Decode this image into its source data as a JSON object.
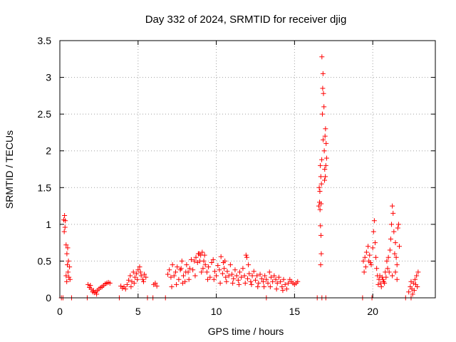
{
  "chart_data": {
    "type": "scatter",
    "title": "Day 332 of 2024, SRMTID for receiver djig",
    "xlabel": "GPS time / hours",
    "ylabel": "SRMTID / TECUs",
    "xlim": [
      0,
      24
    ],
    "ylim": [
      0,
      3.5
    ],
    "xticks": [
      0,
      5,
      10,
      15,
      20
    ],
    "xtick_labels": [
      "0",
      "5",
      "10",
      "15",
      "20"
    ],
    "yticks": [
      0,
      0.5,
      1,
      1.5,
      2,
      2.5,
      3,
      3.5
    ],
    "ytick_labels": [
      "0",
      "0.5",
      "1",
      "1.5",
      "2",
      "2.5",
      "3",
      "3.5"
    ],
    "grid": true,
    "marker": "+",
    "series": [
      {
        "name": "SRMTID",
        "color": "#ff0000",
        "points": [
          [
            0.1,
            0.0
          ],
          [
            0.2,
            0.0
          ],
          [
            0.75,
            0.0
          ],
          [
            1.75,
            0.0
          ],
          [
            3.8,
            0.0
          ],
          [
            5.6,
            0.0
          ],
          [
            5.95,
            0.0
          ],
          [
            6.75,
            0.0
          ],
          [
            13.2,
            0.0
          ],
          [
            16.45,
            0.0
          ],
          [
            16.75,
            0.0
          ],
          [
            17.0,
            0.0
          ],
          [
            19.35,
            0.0
          ],
          [
            19.95,
            0.0
          ],
          [
            22.1,
            0.0
          ],
          [
            22.45,
            0.0
          ],
          [
            0.25,
            1.06
          ],
          [
            0.3,
            1.12
          ],
          [
            0.33,
            0.96
          ],
          [
            0.28,
            0.9
          ],
          [
            0.35,
            1.05
          ],
          [
            0.4,
            0.72
          ],
          [
            0.45,
            0.6
          ],
          [
            0.48,
            0.45
          ],
          [
            0.52,
            0.35
          ],
          [
            0.55,
            0.5
          ],
          [
            0.58,
            0.28
          ],
          [
            0.62,
            0.42
          ],
          [
            0.65,
            0.25
          ],
          [
            0.4,
            0.3
          ],
          [
            0.5,
            0.68
          ],
          [
            0.44,
            0.22
          ],
          [
            1.8,
            0.18
          ],
          [
            1.9,
            0.14
          ],
          [
            2.0,
            0.12
          ],
          [
            2.1,
            0.08
          ],
          [
            2.2,
            0.07
          ],
          [
            2.3,
            0.08
          ],
          [
            2.4,
            0.1
          ],
          [
            2.5,
            0.12
          ],
          [
            2.6,
            0.14
          ],
          [
            2.7,
            0.15
          ],
          [
            2.8,
            0.17
          ],
          [
            2.9,
            0.19
          ],
          [
            3.0,
            0.2
          ],
          [
            3.1,
            0.21
          ],
          [
            3.2,
            0.2
          ],
          [
            1.95,
            0.17
          ],
          [
            2.15,
            0.1
          ],
          [
            2.35,
            0.05
          ],
          [
            3.9,
            0.16
          ],
          [
            4.0,
            0.13
          ],
          [
            4.1,
            0.15
          ],
          [
            4.2,
            0.12
          ],
          [
            4.3,
            0.18
          ],
          [
            4.4,
            0.24
          ],
          [
            4.5,
            0.3
          ],
          [
            4.6,
            0.22
          ],
          [
            4.7,
            0.35
          ],
          [
            4.8,
            0.28
          ],
          [
            4.9,
            0.33
          ],
          [
            5.0,
            0.38
          ],
          [
            5.1,
            0.42
          ],
          [
            5.2,
            0.3
          ],
          [
            5.3,
            0.25
          ],
          [
            5.4,
            0.32
          ],
          [
            5.5,
            0.28
          ],
          [
            4.55,
            0.15
          ],
          [
            4.75,
            0.2
          ],
          [
            4.95,
            0.25
          ],
          [
            5.15,
            0.35
          ],
          [
            5.35,
            0.22
          ],
          [
            6.0,
            0.18
          ],
          [
            6.1,
            0.2
          ],
          [
            6.2,
            0.16
          ],
          [
            6.9,
            0.32
          ],
          [
            7.0,
            0.38
          ],
          [
            7.1,
            0.28
          ],
          [
            7.2,
            0.45
          ],
          [
            7.3,
            0.3
          ],
          [
            7.4,
            0.35
          ],
          [
            7.5,
            0.42
          ],
          [
            7.6,
            0.25
          ],
          [
            7.7,
            0.38
          ],
          [
            7.8,
            0.5
          ],
          [
            7.9,
            0.3
          ],
          [
            8.0,
            0.22
          ],
          [
            8.1,
            0.45
          ],
          [
            8.2,
            0.35
          ],
          [
            8.3,
            0.4
          ],
          [
            8.4,
            0.52
          ],
          [
            8.5,
            0.38
          ],
          [
            8.6,
            0.5
          ],
          [
            8.7,
            0.55
          ],
          [
            8.8,
            0.48
          ],
          [
            8.9,
            0.6
          ],
          [
            9.0,
            0.58
          ],
          [
            9.1,
            0.62
          ],
          [
            9.2,
            0.5
          ],
          [
            9.3,
            0.45
          ],
          [
            9.4,
            0.35
          ],
          [
            9.5,
            0.42
          ],
          [
            9.6,
            0.28
          ],
          [
            9.7,
            0.48
          ],
          [
            9.8,
            0.52
          ],
          [
            9.9,
            0.36
          ],
          [
            10.0,
            0.3
          ],
          [
            10.1,
            0.44
          ],
          [
            10.2,
            0.38
          ],
          [
            10.3,
            0.56
          ],
          [
            10.4,
            0.33
          ],
          [
            10.5,
            0.4
          ],
          [
            10.6,
            0.28
          ],
          [
            10.7,
            0.36
          ],
          [
            10.8,
            0.3
          ],
          [
            10.9,
            0.45
          ],
          [
            11.0,
            0.32
          ],
          [
            11.1,
            0.26
          ],
          [
            11.2,
            0.38
          ],
          [
            11.3,
            0.3
          ],
          [
            11.4,
            0.24
          ],
          [
            11.5,
            0.35
          ],
          [
            11.6,
            0.28
          ],
          [
            11.7,
            0.4
          ],
          [
            11.8,
            0.3
          ],
          [
            11.9,
            0.58
          ],
          [
            12.0,
            0.26
          ],
          [
            12.1,
            0.33
          ],
          [
            12.2,
            0.22
          ],
          [
            12.3,
            0.3
          ],
          [
            12.4,
            0.36
          ],
          [
            12.5,
            0.24
          ],
          [
            12.6,
            0.3
          ],
          [
            12.7,
            0.2
          ],
          [
            12.8,
            0.32
          ],
          [
            12.9,
            0.26
          ],
          [
            13.0,
            0.22
          ],
          [
            13.1,
            0.3
          ],
          [
            13.2,
            0.25
          ],
          [
            13.3,
            0.2
          ],
          [
            13.4,
            0.35
          ],
          [
            13.5,
            0.28
          ],
          [
            13.6,
            0.22
          ],
          [
            13.7,
            0.3
          ],
          [
            13.8,
            0.25
          ],
          [
            13.9,
            0.2
          ],
          [
            14.0,
            0.28
          ],
          [
            14.1,
            0.22
          ],
          [
            14.2,
            0.15
          ],
          [
            14.3,
            0.25
          ],
          [
            14.4,
            0.18
          ],
          [
            14.5,
            0.12
          ],
          [
            14.6,
            0.2
          ],
          [
            14.7,
            0.25
          ],
          [
            14.8,
            0.22
          ],
          [
            14.9,
            0.2
          ],
          [
            15.0,
            0.18
          ],
          [
            15.1,
            0.2
          ],
          [
            15.2,
            0.22
          ],
          [
            7.15,
            0.15
          ],
          [
            7.45,
            0.18
          ],
          [
            7.85,
            0.2
          ],
          [
            8.25,
            0.25
          ],
          [
            8.65,
            0.3
          ],
          [
            9.05,
            0.35
          ],
          [
            9.45,
            0.25
          ],
          [
            9.85,
            0.25
          ],
          [
            10.25,
            0.2
          ],
          [
            10.65,
            0.22
          ],
          [
            11.05,
            0.2
          ],
          [
            11.45,
            0.18
          ],
          [
            11.85,
            0.2
          ],
          [
            12.25,
            0.18
          ],
          [
            12.65,
            0.15
          ],
          [
            13.05,
            0.15
          ],
          [
            13.45,
            0.15
          ],
          [
            13.85,
            0.12
          ],
          [
            14.25,
            0.1
          ],
          [
            8.95,
            0.5
          ],
          [
            9.25,
            0.58
          ],
          [
            9.15,
            0.4
          ],
          [
            8.85,
            0.6
          ],
          [
            10.45,
            0.48
          ],
          [
            10.55,
            0.5
          ],
          [
            12.05,
            0.45
          ],
          [
            11.95,
            0.55
          ],
          [
            7.75,
            0.4
          ],
          [
            8.05,
            0.35
          ],
          [
            16.55,
            1.25
          ],
          [
            16.58,
            1.5
          ],
          [
            16.6,
            1.3
          ],
          [
            16.62,
            1.45
          ],
          [
            16.65,
            1.8
          ],
          [
            16.68,
            1.65
          ],
          [
            16.7,
            1.28
          ],
          [
            16.72,
            1.55
          ],
          [
            16.75,
            3.28
          ],
          [
            16.78,
            2.5
          ],
          [
            16.8,
            2.85
          ],
          [
            16.82,
            3.05
          ],
          [
            16.85,
            2.78
          ],
          [
            16.88,
            2.6
          ],
          [
            16.9,
            2.0
          ],
          [
            16.92,
            1.6
          ],
          [
            16.95,
            2.2
          ],
          [
            16.98,
            2.3
          ],
          [
            17.0,
            1.8
          ],
          [
            17.02,
            2.1
          ],
          [
            17.05,
            1.9
          ],
          [
            16.63,
            1.2
          ],
          [
            16.66,
            0.98
          ],
          [
            16.69,
            0.85
          ],
          [
            16.71,
            0.6
          ],
          [
            16.67,
            0.45
          ],
          [
            16.74,
            1.88
          ],
          [
            16.83,
            2.15
          ],
          [
            16.93,
            1.75
          ],
          [
            16.97,
            1.65
          ],
          [
            19.4,
            0.5
          ],
          [
            19.5,
            0.55
          ],
          [
            19.6,
            0.62
          ],
          [
            19.7,
            0.7
          ],
          [
            19.8,
            0.58
          ],
          [
            19.9,
            0.45
          ],
          [
            20.0,
            0.68
          ],
          [
            20.05,
            0.9
          ],
          [
            20.1,
            1.05
          ],
          [
            20.15,
            0.75
          ],
          [
            20.2,
            0.55
          ],
          [
            20.25,
            0.4
          ],
          [
            20.3,
            0.3
          ],
          [
            20.4,
            0.25
          ],
          [
            20.5,
            0.2
          ],
          [
            20.6,
            0.28
          ],
          [
            20.7,
            0.22
          ],
          [
            20.8,
            0.35
          ],
          [
            20.9,
            0.5
          ],
          [
            21.0,
            0.55
          ],
          [
            21.1,
            0.65
          ],
          [
            21.15,
            0.8
          ],
          [
            21.2,
            1.0
          ],
          [
            21.25,
            1.25
          ],
          [
            21.3,
            1.15
          ],
          [
            21.35,
            0.9
          ],
          [
            21.4,
            0.6
          ],
          [
            21.45,
            0.75
          ],
          [
            21.5,
            0.55
          ],
          [
            21.55,
            0.45
          ],
          [
            21.6,
            0.95
          ],
          [
            21.65,
            1.0
          ],
          [
            21.7,
            0.7
          ],
          [
            19.45,
            0.35
          ],
          [
            19.55,
            0.42
          ],
          [
            19.75,
            0.5
          ],
          [
            19.85,
            0.48
          ],
          [
            20.35,
            0.18
          ],
          [
            20.45,
            0.3
          ],
          [
            20.55,
            0.15
          ],
          [
            20.65,
            0.25
          ],
          [
            20.75,
            0.2
          ],
          [
            20.85,
            0.28
          ],
          [
            20.95,
            0.4
          ],
          [
            21.05,
            0.35
          ],
          [
            21.25,
            0.3
          ],
          [
            21.45,
            0.35
          ],
          [
            21.55,
            0.25
          ],
          [
            22.3,
            0.08
          ],
          [
            22.4,
            0.15
          ],
          [
            22.5,
            0.12
          ],
          [
            22.6,
            0.2
          ],
          [
            22.7,
            0.25
          ],
          [
            22.8,
            0.3
          ],
          [
            22.9,
            0.35
          ],
          [
            22.45,
            0.22
          ],
          [
            22.55,
            0.05
          ],
          [
            22.65,
            0.1
          ],
          [
            22.75,
            0.18
          ],
          [
            22.85,
            0.15
          ]
        ]
      }
    ]
  }
}
